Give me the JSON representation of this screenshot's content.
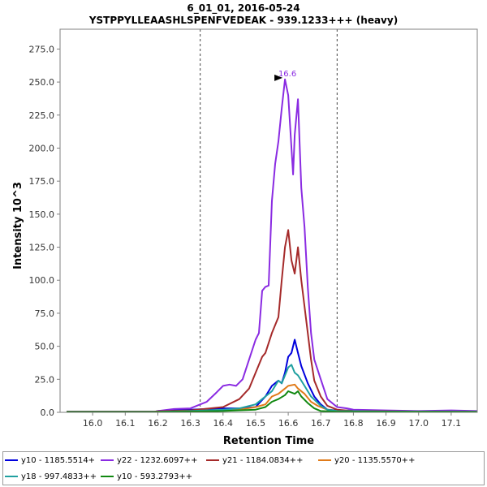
{
  "chart_data": {
    "type": "line",
    "title": "6_01_01, 2016-05-24",
    "subtitle": "YSTPPYLLEAASHLSPENFVEDEAK - 939.1233+++ (heavy)",
    "xlabel": "Retention Time",
    "ylabel": "Intensity 10^3",
    "xlim": [
      15.9,
      17.18
    ],
    "ylim": [
      0,
      290
    ],
    "x_ticks": [
      "16.0",
      "16.1",
      "16.2",
      "16.3",
      "16.4",
      "16.5",
      "16.6",
      "16.7",
      "16.8",
      "16.9",
      "17.0",
      "17.1"
    ],
    "y_ticks": [
      "0.0",
      "25.0",
      "50.0",
      "75.0",
      "100.0",
      "125.0",
      "150.0",
      "175.0",
      "200.0",
      "225.0",
      "250.0",
      "275.0"
    ],
    "integration_bounds": [
      16.33,
      16.75
    ],
    "peak_annotation": {
      "label": "16.6",
      "x": 16.59,
      "y": 252,
      "color": "#8a2be2"
    },
    "legend_position": "bottom",
    "series": [
      {
        "name": "y10 - 1185.5514+",
        "color": "#0000dd",
        "points": [
          [
            15.92,
            0.4
          ],
          [
            16.19,
            0.4
          ],
          [
            16.2,
            1
          ],
          [
            16.26,
            1.8
          ],
          [
            16.3,
            2
          ],
          [
            16.35,
            2.5
          ],
          [
            16.4,
            3
          ],
          [
            16.45,
            3
          ],
          [
            16.5,
            4
          ],
          [
            16.53,
            12
          ],
          [
            16.55,
            20
          ],
          [
            16.57,
            24
          ],
          [
            16.58,
            22
          ],
          [
            16.59,
            30
          ],
          [
            16.6,
            42
          ],
          [
            16.61,
            45
          ],
          [
            16.62,
            55
          ],
          [
            16.63,
            45
          ],
          [
            16.64,
            35
          ],
          [
            16.66,
            22
          ],
          [
            16.68,
            12
          ],
          [
            16.7,
            6
          ],
          [
            16.72,
            2
          ],
          [
            16.76,
            1.2
          ],
          [
            16.8,
            1.5
          ],
          [
            16.9,
            1
          ],
          [
            17.0,
            0.8
          ],
          [
            17.1,
            1.2
          ],
          [
            17.18,
            0.6
          ]
        ]
      },
      {
        "name": "y22 - 1232.6097++",
        "color": "#8a2be2",
        "points": [
          [
            15.92,
            0.4
          ],
          [
            16.19,
            0.4
          ],
          [
            16.2,
            1
          ],
          [
            16.25,
            2.5
          ],
          [
            16.3,
            3
          ],
          [
            16.35,
            8
          ],
          [
            16.38,
            15
          ],
          [
            16.4,
            20
          ],
          [
            16.42,
            21
          ],
          [
            16.44,
            20
          ],
          [
            16.46,
            25
          ],
          [
            16.48,
            40
          ],
          [
            16.5,
            55
          ],
          [
            16.51,
            60
          ],
          [
            16.52,
            92
          ],
          [
            16.53,
            95
          ],
          [
            16.54,
            96
          ],
          [
            16.55,
            160
          ],
          [
            16.56,
            188
          ],
          [
            16.57,
            205
          ],
          [
            16.58,
            230
          ],
          [
            16.59,
            252
          ],
          [
            16.6,
            240
          ],
          [
            16.61,
            200
          ],
          [
            16.615,
            180
          ],
          [
            16.62,
            210
          ],
          [
            16.63,
            237
          ],
          [
            16.64,
            170
          ],
          [
            16.65,
            140
          ],
          [
            16.66,
            95
          ],
          [
            16.67,
            60
          ],
          [
            16.68,
            40
          ],
          [
            16.7,
            25
          ],
          [
            16.72,
            10
          ],
          [
            16.75,
            4
          ],
          [
            16.78,
            3
          ],
          [
            16.8,
            2
          ],
          [
            16.9,
            1.5
          ],
          [
            17.0,
            1
          ],
          [
            17.1,
            1.5
          ],
          [
            17.18,
            1
          ]
        ]
      },
      {
        "name": "y21 - 1184.0834++",
        "color": "#a52a2a",
        "points": [
          [
            15.92,
            0.4
          ],
          [
            16.19,
            0.4
          ],
          [
            16.2,
            0.8
          ],
          [
            16.3,
            1.5
          ],
          [
            16.4,
            4
          ],
          [
            16.45,
            10
          ],
          [
            16.48,
            18
          ],
          [
            16.5,
            30
          ],
          [
            16.52,
            42
          ],
          [
            16.53,
            45
          ],
          [
            16.55,
            60
          ],
          [
            16.57,
            72
          ],
          [
            16.58,
            100
          ],
          [
            16.59,
            125
          ],
          [
            16.6,
            138
          ],
          [
            16.61,
            115
          ],
          [
            16.62,
            105
          ],
          [
            16.63,
            125
          ],
          [
            16.64,
            100
          ],
          [
            16.65,
            80
          ],
          [
            16.66,
            60
          ],
          [
            16.67,
            40
          ],
          [
            16.68,
            24
          ],
          [
            16.7,
            12
          ],
          [
            16.72,
            5
          ],
          [
            16.75,
            2
          ],
          [
            16.8,
            1
          ],
          [
            16.9,
            0.8
          ],
          [
            17.0,
            0.6
          ],
          [
            17.18,
            0.5
          ]
        ]
      },
      {
        "name": "y20 - 1135.5570++",
        "color": "#e07b1a",
        "points": [
          [
            15.92,
            0.3
          ],
          [
            16.19,
            0.3
          ],
          [
            16.3,
            0.8
          ],
          [
            16.4,
            1.5
          ],
          [
            16.45,
            2
          ],
          [
            16.5,
            4
          ],
          [
            16.53,
            6
          ],
          [
            16.55,
            12
          ],
          [
            16.57,
            14
          ],
          [
            16.59,
            18
          ],
          [
            16.6,
            20
          ],
          [
            16.62,
            21
          ],
          [
            16.63,
            18
          ],
          [
            16.65,
            14
          ],
          [
            16.67,
            8
          ],
          [
            16.69,
            5
          ],
          [
            16.72,
            2
          ],
          [
            16.75,
            1
          ],
          [
            16.9,
            0.5
          ],
          [
            17.18,
            0.3
          ]
        ]
      },
      {
        "name": "y18 - 997.4833++",
        "color": "#20a0a0",
        "points": [
          [
            15.92,
            0.3
          ],
          [
            16.19,
            0.3
          ],
          [
            16.3,
            1
          ],
          [
            16.4,
            2
          ],
          [
            16.45,
            3
          ],
          [
            16.5,
            6
          ],
          [
            16.52,
            10
          ],
          [
            16.55,
            16
          ],
          [
            16.57,
            24
          ],
          [
            16.58,
            22
          ],
          [
            16.6,
            34
          ],
          [
            16.61,
            36
          ],
          [
            16.62,
            30
          ],
          [
            16.63,
            28
          ],
          [
            16.65,
            20
          ],
          [
            16.67,
            12
          ],
          [
            16.7,
            5
          ],
          [
            16.72,
            2
          ],
          [
            16.75,
            1
          ],
          [
            16.9,
            0.6
          ],
          [
            17.18,
            0.4
          ]
        ]
      },
      {
        "name": "y10 - 593.2793++",
        "color": "#118811",
        "points": [
          [
            15.92,
            0.3
          ],
          [
            16.19,
            0.3
          ],
          [
            16.3,
            0.6
          ],
          [
            16.4,
            1
          ],
          [
            16.5,
            2
          ],
          [
            16.53,
            4
          ],
          [
            16.55,
            8
          ],
          [
            16.57,
            10
          ],
          [
            16.59,
            13
          ],
          [
            16.6,
            16
          ],
          [
            16.62,
            14
          ],
          [
            16.63,
            16
          ],
          [
            16.64,
            12
          ],
          [
            16.66,
            7
          ],
          [
            16.68,
            3
          ],
          [
            16.7,
            1
          ],
          [
            16.75,
            0.5
          ],
          [
            16.9,
            0.4
          ],
          [
            17.18,
            0.3
          ]
        ]
      }
    ]
  }
}
